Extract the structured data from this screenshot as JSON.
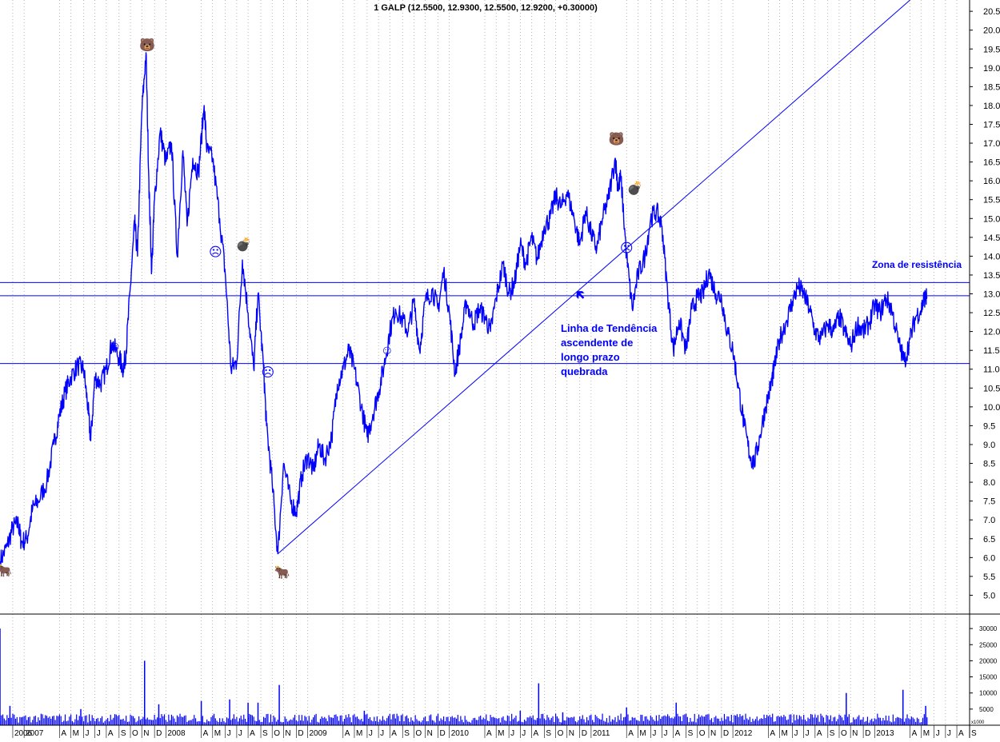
{
  "chart_data": {
    "type": "line",
    "title": "1 GALP (12.5500, 12.9300, 12.5500, 12.9200, +0.30000)",
    "price_axis": {
      "ylim": [
        4.5,
        20.8
      ],
      "ticks": [
        "20.5",
        "20.0",
        "19.5",
        "19.0",
        "18.5",
        "18.0",
        "17.5",
        "17.0",
        "16.5",
        "16.0",
        "15.5",
        "15.0",
        "14.5",
        "14.0",
        "13.5",
        "13.0",
        "12.5",
        "12.0",
        "11.5",
        "11.0",
        "10.5",
        "10.0",
        "9.5",
        "9.0",
        "8.5",
        "8.0",
        "7.5",
        "7.0",
        "6.5",
        "6.0",
        "5.5",
        "5.0"
      ]
    },
    "volume_axis": {
      "ticks": [
        "30000",
        "25000",
        "20000",
        "15000",
        "10000",
        "5000"
      ],
      "unit": "x1000"
    },
    "x_range": [
      2006.83,
      2013.67
    ],
    "x_ticks": [
      {
        "label": "2006",
        "t": 2006.92
      },
      {
        "label": "2007",
        "t": 2007.0
      },
      {
        "label": "A",
        "t": 2007.25
      },
      {
        "label": "M",
        "t": 2007.33
      },
      {
        "label": "J",
        "t": 2007.42
      },
      {
        "label": "J",
        "t": 2007.5
      },
      {
        "label": "A",
        "t": 2007.58
      },
      {
        "label": "S",
        "t": 2007.67
      },
      {
        "label": "O",
        "t": 2007.75
      },
      {
        "label": "N",
        "t": 2007.83
      },
      {
        "label": "D",
        "t": 2007.92
      },
      {
        "label": "2008",
        "t": 2008.0
      },
      {
        "label": "A",
        "t": 2008.25
      },
      {
        "label": "M",
        "t": 2008.33
      },
      {
        "label": "J",
        "t": 2008.42
      },
      {
        "label": "J",
        "t": 2008.5
      },
      {
        "label": "A",
        "t": 2008.58
      },
      {
        "label": "S",
        "t": 2008.67
      },
      {
        "label": "O",
        "t": 2008.75
      },
      {
        "label": "N",
        "t": 2008.83
      },
      {
        "label": "D",
        "t": 2008.92
      },
      {
        "label": "2009",
        "t": 2009.0
      },
      {
        "label": "A",
        "t": 2009.25
      },
      {
        "label": "M",
        "t": 2009.33
      },
      {
        "label": "J",
        "t": 2009.42
      },
      {
        "label": "J",
        "t": 2009.5
      },
      {
        "label": "A",
        "t": 2009.58
      },
      {
        "label": "S",
        "t": 2009.67
      },
      {
        "label": "O",
        "t": 2009.75
      },
      {
        "label": "N",
        "t": 2009.83
      },
      {
        "label": "D",
        "t": 2009.92
      },
      {
        "label": "2010",
        "t": 2010.0
      },
      {
        "label": "A",
        "t": 2010.25
      },
      {
        "label": "M",
        "t": 2010.33
      },
      {
        "label": "J",
        "t": 2010.42
      },
      {
        "label": "J",
        "t": 2010.5
      },
      {
        "label": "A",
        "t": 2010.58
      },
      {
        "label": "S",
        "t": 2010.67
      },
      {
        "label": "O",
        "t": 2010.75
      },
      {
        "label": "N",
        "t": 2010.83
      },
      {
        "label": "D",
        "t": 2010.92
      },
      {
        "label": "2011",
        "t": 2011.0
      },
      {
        "label": "A",
        "t": 2011.25
      },
      {
        "label": "M",
        "t": 2011.33
      },
      {
        "label": "J",
        "t": 2011.42
      },
      {
        "label": "J",
        "t": 2011.5
      },
      {
        "label": "A",
        "t": 2011.58
      },
      {
        "label": "S",
        "t": 2011.67
      },
      {
        "label": "O",
        "t": 2011.75
      },
      {
        "label": "N",
        "t": 2011.83
      },
      {
        "label": "D",
        "t": 2011.92
      },
      {
        "label": "2012",
        "t": 2012.0
      },
      {
        "label": "A",
        "t": 2012.25
      },
      {
        "label": "M",
        "t": 2012.33
      },
      {
        "label": "J",
        "t": 2012.42
      },
      {
        "label": "J",
        "t": 2012.5
      },
      {
        "label": "A",
        "t": 2012.58
      },
      {
        "label": "S",
        "t": 2012.67
      },
      {
        "label": "O",
        "t": 2012.75
      },
      {
        "label": "N",
        "t": 2012.83
      },
      {
        "label": "D",
        "t": 2012.92
      },
      {
        "label": "2013",
        "t": 2013.0
      },
      {
        "label": "A",
        "t": 2013.25
      },
      {
        "label": "M",
        "t": 2013.33
      },
      {
        "label": "J",
        "t": 2013.42
      },
      {
        "label": "J",
        "t": 2013.5
      },
      {
        "label": "A",
        "t": 2013.58
      },
      {
        "label": "S",
        "t": 2013.67
      }
    ],
    "series": [
      {
        "color": "#0000ff",
        "points": [
          [
            2006.83,
            5.9
          ],
          [
            2006.88,
            6.3
          ],
          [
            2006.92,
            6.8
          ],
          [
            2006.96,
            6.9
          ],
          [
            2006.98,
            6.4
          ],
          [
            2007.02,
            6.5
          ],
          [
            2007.06,
            7.3
          ],
          [
            2007.1,
            7.5
          ],
          [
            2007.16,
            8.0
          ],
          [
            2007.21,
            9.0
          ],
          [
            2007.25,
            9.8
          ],
          [
            2007.29,
            10.4
          ],
          [
            2007.33,
            10.8
          ],
          [
            2007.38,
            11.1
          ],
          [
            2007.42,
            11.0
          ],
          [
            2007.45,
            10.0
          ],
          [
            2007.47,
            9.1
          ],
          [
            2007.5,
            10.8
          ],
          [
            2007.54,
            10.6
          ],
          [
            2007.58,
            11.0
          ],
          [
            2007.62,
            11.7
          ],
          [
            2007.67,
            11.3
          ],
          [
            2007.7,
            11.0
          ],
          [
            2007.72,
            11.5
          ],
          [
            2007.75,
            13.2
          ],
          [
            2007.78,
            14.9
          ],
          [
            2007.8,
            14.0
          ],
          [
            2007.83,
            17.8
          ],
          [
            2007.86,
            19.4
          ],
          [
            2007.88,
            16.0
          ],
          [
            2007.9,
            13.6
          ],
          [
            2007.92,
            15.5
          ],
          [
            2007.96,
            17.3
          ],
          [
            2008.0,
            16.5
          ],
          [
            2008.04,
            17.0
          ],
          [
            2008.08,
            14.0
          ],
          [
            2008.12,
            16.8
          ],
          [
            2008.15,
            14.8
          ],
          [
            2008.19,
            16.6
          ],
          [
            2008.23,
            16.2
          ],
          [
            2008.27,
            18.0
          ],
          [
            2008.29,
            16.8
          ],
          [
            2008.33,
            16.6
          ],
          [
            2008.38,
            15.0
          ],
          [
            2008.42,
            13.5
          ],
          [
            2008.46,
            11.0
          ],
          [
            2008.5,
            11.2
          ],
          [
            2008.54,
            13.9
          ],
          [
            2008.58,
            12.5
          ],
          [
            2008.62,
            11.0
          ],
          [
            2008.65,
            13.0
          ],
          [
            2008.69,
            11.0
          ],
          [
            2008.71,
            9.5
          ],
          [
            2008.75,
            8.0
          ],
          [
            2008.79,
            6.1
          ],
          [
            2008.83,
            8.5
          ],
          [
            2008.88,
            7.5
          ],
          [
            2008.92,
            7.2
          ],
          [
            2008.96,
            8.2
          ],
          [
            2009.0,
            8.7
          ],
          [
            2009.04,
            8.3
          ],
          [
            2009.08,
            9.0
          ],
          [
            2009.12,
            8.6
          ],
          [
            2009.17,
            9.2
          ],
          [
            2009.21,
            10.6
          ],
          [
            2009.25,
            11.0
          ],
          [
            2009.29,
            11.5
          ],
          [
            2009.33,
            11.0
          ],
          [
            2009.38,
            10.0
          ],
          [
            2009.42,
            9.2
          ],
          [
            2009.46,
            9.8
          ],
          [
            2009.5,
            10.4
          ],
          [
            2009.54,
            11.1
          ],
          [
            2009.58,
            12.0
          ],
          [
            2009.62,
            12.6
          ],
          [
            2009.67,
            12.3
          ],
          [
            2009.71,
            12.0
          ],
          [
            2009.75,
            12.8
          ],
          [
            2009.79,
            11.5
          ],
          [
            2009.83,
            12.8
          ],
          [
            2009.88,
            13.1
          ],
          [
            2009.92,
            12.6
          ],
          [
            2009.96,
            13.6
          ],
          [
            2010.0,
            12.5
          ],
          [
            2010.04,
            10.9
          ],
          [
            2010.08,
            11.8
          ],
          [
            2010.12,
            12.8
          ],
          [
            2010.17,
            12.2
          ],
          [
            2010.21,
            12.6
          ],
          [
            2010.25,
            12.4
          ],
          [
            2010.29,
            12.0
          ],
          [
            2010.33,
            12.9
          ],
          [
            2010.38,
            13.8
          ],
          [
            2010.42,
            13.0
          ],
          [
            2010.46,
            13.3
          ],
          [
            2010.5,
            14.3
          ],
          [
            2010.54,
            13.8
          ],
          [
            2010.58,
            14.5
          ],
          [
            2010.62,
            13.9
          ],
          [
            2010.67,
            14.8
          ],
          [
            2010.71,
            15.0
          ],
          [
            2010.75,
            15.6
          ],
          [
            2010.79,
            15.3
          ],
          [
            2010.83,
            15.7
          ],
          [
            2010.88,
            15.0
          ],
          [
            2010.92,
            14.3
          ],
          [
            2010.96,
            15.2
          ],
          [
            2011.0,
            14.6
          ],
          [
            2011.04,
            14.2
          ],
          [
            2011.08,
            15.0
          ],
          [
            2011.12,
            15.5
          ],
          [
            2011.17,
            16.6
          ],
          [
            2011.19,
            15.8
          ],
          [
            2011.21,
            16.1
          ],
          [
            2011.25,
            14.0
          ],
          [
            2011.29,
            12.6
          ],
          [
            2011.33,
            13.5
          ],
          [
            2011.38,
            14.0
          ],
          [
            2011.42,
            15.0
          ],
          [
            2011.46,
            15.2
          ],
          [
            2011.5,
            14.8
          ],
          [
            2011.54,
            13.0
          ],
          [
            2011.58,
            11.5
          ],
          [
            2011.62,
            12.3
          ],
          [
            2011.67,
            11.5
          ],
          [
            2011.71,
            12.6
          ],
          [
            2011.75,
            12.9
          ],
          [
            2011.79,
            13.0
          ],
          [
            2011.83,
            13.6
          ],
          [
            2011.88,
            13.0
          ],
          [
            2011.92,
            12.9
          ],
          [
            2011.96,
            12.0
          ],
          [
            2012.0,
            11.5
          ],
          [
            2012.04,
            10.5
          ],
          [
            2012.08,
            9.5
          ],
          [
            2012.12,
            8.7
          ],
          [
            2012.15,
            8.5
          ],
          [
            2012.19,
            9.2
          ],
          [
            2012.23,
            10.0
          ],
          [
            2012.27,
            10.6
          ],
          [
            2012.29,
            11.0
          ],
          [
            2012.33,
            11.8
          ],
          [
            2012.38,
            12.3
          ],
          [
            2012.42,
            12.8
          ],
          [
            2012.46,
            13.2
          ],
          [
            2012.5,
            13.0
          ],
          [
            2012.54,
            12.6
          ],
          [
            2012.58,
            12.0
          ],
          [
            2012.62,
            11.8
          ],
          [
            2012.67,
            12.2
          ],
          [
            2012.71,
            12.0
          ],
          [
            2012.75,
            12.4
          ],
          [
            2012.79,
            12.0
          ],
          [
            2012.83,
            11.6
          ],
          [
            2012.88,
            12.2
          ],
          [
            2012.92,
            12.0
          ],
          [
            2012.96,
            12.2
          ],
          [
            2013.0,
            12.7
          ],
          [
            2013.04,
            12.5
          ],
          [
            2013.08,
            12.9
          ],
          [
            2013.12,
            12.6
          ],
          [
            2013.17,
            11.7
          ],
          [
            2013.21,
            11.2
          ],
          [
            2013.25,
            11.8
          ],
          [
            2013.29,
            12.4
          ],
          [
            2013.33,
            12.6
          ],
          [
            2013.35,
            12.9
          ],
          [
            2013.37,
            12.9
          ]
        ]
      }
    ],
    "volume": {
      "color": "#0000ff",
      "base_level": 2000,
      "spikes": [
        [
          2006.83,
          30000
        ],
        [
          2006.9,
          6000
        ],
        [
          2007.4,
          5000
        ],
        [
          2007.85,
          20000
        ],
        [
          2007.95,
          6500
        ],
        [
          2008.25,
          7500
        ],
        [
          2008.45,
          8000
        ],
        [
          2008.58,
          7000
        ],
        [
          2008.65,
          7000
        ],
        [
          2008.8,
          12500
        ],
        [
          2009.4,
          4500
        ],
        [
          2010.5,
          4500
        ],
        [
          2010.63,
          13000
        ],
        [
          2010.8,
          4000
        ],
        [
          2011.25,
          5500
        ],
        [
          2011.6,
          7000
        ],
        [
          2012.8,
          10000
        ],
        [
          2013.2,
          11000
        ],
        [
          2013.36,
          6000
        ]
      ]
    },
    "horizontal_lines": [
      {
        "y": 13.3,
        "color": "#0000ff"
      },
      {
        "y": 12.95,
        "color": "#0000ff"
      },
      {
        "y": 11.15,
        "color": "#0000ff"
      }
    ],
    "trendline": {
      "x1": 2008.79,
      "y1": 6.1,
      "x2": 2013.25,
      "y2": 20.8,
      "color": "#0000ff"
    },
    "annotations": {
      "resistance_label": "Zona de resistência",
      "trend_lines": [
        "Linha de Tendência",
        "ascendente de",
        "longo prazo",
        "quebrada"
      ],
      "arrow": "🡴"
    },
    "markers": [
      {
        "icon": "bull-icon",
        "glyph": "🐂",
        "x": 2006.86,
        "y": 5.55
      },
      {
        "icon": "bull-icon",
        "glyph": "🐂",
        "x": 2008.82,
        "y": 5.5
      },
      {
        "icon": "bear-icon",
        "glyph": "🐻",
        "x": 2007.87,
        "y": 19.5
      },
      {
        "icon": "bear-icon",
        "glyph": "🐻",
        "x": 2011.18,
        "y": 17.0
      },
      {
        "icon": "smiley-icon",
        "glyph": "☺",
        "x": 2007.64,
        "y": 11.5
      },
      {
        "icon": "smiley-icon",
        "glyph": "☺",
        "x": 2009.56,
        "y": 11.4
      },
      {
        "icon": "frown-icon",
        "glyph": "☹",
        "x": 2008.35,
        "y": 14.0
      },
      {
        "icon": "frown-icon",
        "glyph": "☹",
        "x": 2008.72,
        "y": 10.8
      },
      {
        "icon": "frown-icon",
        "glyph": "☹",
        "x": 2011.25,
        "y": 14.1
      },
      {
        "icon": "bomb-icon",
        "glyph": "💣",
        "x": 2008.55,
        "y": 14.2
      },
      {
        "icon": "bomb-icon",
        "glyph": "💣",
        "x": 2011.31,
        "y": 15.7
      }
    ],
    "grid": {
      "vertical": "dotted",
      "horizontal": false
    },
    "colors": {
      "series": "#0000ff",
      "axis": "#000000",
      "grid": "#888888",
      "background": "#ffffff"
    }
  }
}
